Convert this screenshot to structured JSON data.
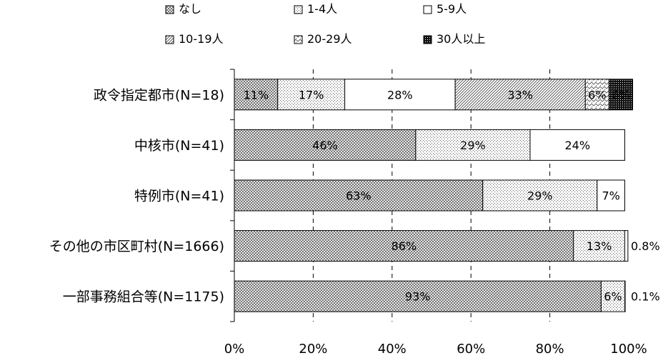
{
  "chart_data": {
    "type": "bar",
    "orientation": "horizontal",
    "stacked": true,
    "percent_stacked": true,
    "categories": [
      "政令指定都市(N=18)",
      "中核市(N=41)",
      "特例市(N=41)",
      "その他の市区町村(N=1666)",
      "一部事務組合等(N=1175)"
    ],
    "series": [
      {
        "name": "なし",
        "pattern": "crosshatch-fine",
        "values": [
          11,
          46,
          63,
          86,
          93
        ],
        "labels": [
          "11%",
          "46%",
          "63%",
          "86%",
          "93%"
        ]
      },
      {
        "name": "1-4人",
        "pattern": "dots",
        "values": [
          17,
          29,
          29,
          13,
          6
        ],
        "labels": [
          "17%",
          "29%",
          "29%",
          "13%",
          "6%"
        ]
      },
      {
        "name": "5-9人",
        "pattern": "none",
        "values": [
          28,
          24,
          7,
          0.8,
          0.1
        ],
        "labels": [
          "28%",
          "24%",
          "7%",
          "0.8%",
          "0.1%"
        ]
      },
      {
        "name": "10-19人",
        "pattern": "diagonal",
        "values": [
          33,
          0,
          0,
          0,
          0
        ],
        "labels": [
          "33%",
          "",
          "",
          "",
          ""
        ]
      },
      {
        "name": "20-29人",
        "pattern": "zigzag",
        "values": [
          6,
          0,
          0,
          0,
          0
        ],
        "labels": [
          "6%",
          "",
          "",
          "",
          ""
        ]
      },
      {
        "name": "30人以上",
        "pattern": "dense",
        "values": [
          6,
          0,
          0,
          0,
          0
        ],
        "labels": [
          "6%",
          "",
          "",
          "",
          ""
        ]
      }
    ],
    "xlim": [
      0,
      100
    ],
    "xticks": [
      "0%",
      "20%",
      "40%",
      "60%",
      "80%",
      "100%"
    ],
    "grid": "vertical dashed",
    "legend_position": "top"
  }
}
